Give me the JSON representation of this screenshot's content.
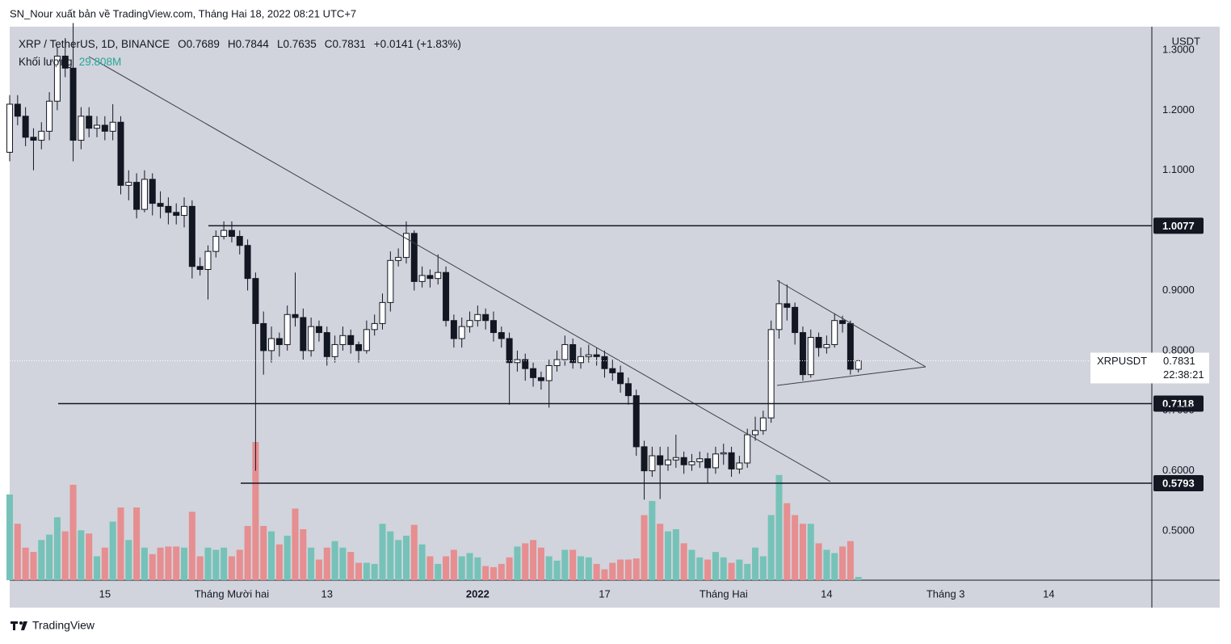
{
  "header": {
    "publisher_line": "SN_Nour xuất bản về TradingView.com, Tháng Hai 18, 2022 08:21 UTC+7",
    "brand": "TradingView"
  },
  "chart_data": {
    "type": "candlestick",
    "symbol_title": "XRP / TetherUS, 1D, BINANCE",
    "ohlc_prefixes": [
      "O",
      "H",
      "L",
      "C"
    ],
    "change_label": "+0.0141 (+1.83%)",
    "volume_name": "Khối lượng",
    "volume_value_label": "29.808M",
    "axis_unit": "USDT",
    "symbol": "XRPUSDT",
    "countdown": "22:38:21",
    "x": [
      "2021-11-03",
      "2021-11-04",
      "2021-11-05",
      "2021-11-06",
      "2021-11-07",
      "2021-11-08",
      "2021-11-09",
      "2021-11-10",
      "2021-11-11",
      "2021-11-12",
      "2021-11-13",
      "2021-11-14",
      "2021-11-15",
      "2021-11-16",
      "2021-11-17",
      "2021-11-18",
      "2021-11-19",
      "2021-11-20",
      "2021-11-21",
      "2021-11-22",
      "2021-11-23",
      "2021-11-24",
      "2021-11-25",
      "2021-11-26",
      "2021-11-27",
      "2021-11-28",
      "2021-11-29",
      "2021-11-30",
      "2021-12-01",
      "2021-12-02",
      "2021-12-03",
      "2021-12-04",
      "2021-12-05",
      "2021-12-06",
      "2021-12-07",
      "2021-12-08",
      "2021-12-09",
      "2021-12-10",
      "2021-12-11",
      "2021-12-12",
      "2021-12-13",
      "2021-12-14",
      "2021-12-15",
      "2021-12-16",
      "2021-12-17",
      "2021-12-18",
      "2021-12-19",
      "2021-12-20",
      "2021-12-21",
      "2021-12-22",
      "2021-12-23",
      "2021-12-24",
      "2021-12-25",
      "2021-12-26",
      "2021-12-27",
      "2021-12-28",
      "2021-12-29",
      "2021-12-30",
      "2021-12-31",
      "2022-01-01",
      "2022-01-02",
      "2022-01-03",
      "2022-01-04",
      "2022-01-05",
      "2022-01-06",
      "2022-01-07",
      "2022-01-08",
      "2022-01-09",
      "2022-01-10",
      "2022-01-11",
      "2022-01-12",
      "2022-01-13",
      "2022-01-14",
      "2022-01-15",
      "2022-01-16",
      "2022-01-17",
      "2022-01-18",
      "2022-01-19",
      "2022-01-20",
      "2022-01-21",
      "2022-01-22",
      "2022-01-23",
      "2022-01-24",
      "2022-01-25",
      "2022-01-26",
      "2022-01-27",
      "2022-01-28",
      "2022-01-29",
      "2022-01-30",
      "2022-01-31",
      "2022-02-01",
      "2022-02-02",
      "2022-02-03",
      "2022-02-04",
      "2022-02-05",
      "2022-02-06",
      "2022-02-07",
      "2022-02-08",
      "2022-02-09",
      "2022-02-10",
      "2022-02-11",
      "2022-02-12",
      "2022-02-13",
      "2022-02-14",
      "2022-02-15",
      "2022-02-16",
      "2022-02-17",
      "2022-02-18"
    ],
    "open": [
      1.13,
      1.21,
      1.19,
      1.155,
      1.15,
      1.165,
      1.215,
      1.29,
      1.27,
      1.15,
      1.19,
      1.17,
      1.175,
      1.165,
      1.18,
      1.075,
      1.08,
      1.035,
      1.085,
      1.045,
      1.04,
      1.03,
      1.025,
      1.04,
      0.94,
      0.935,
      0.965,
      0.99,
      1.0,
      0.99,
      0.975,
      0.92,
      0.845,
      0.8,
      0.82,
      0.81,
      0.86,
      0.855,
      0.8,
      0.84,
      0.83,
      0.79,
      0.81,
      0.825,
      0.81,
      0.8,
      0.835,
      0.845,
      0.88,
      0.95,
      0.955,
      0.995,
      0.915,
      0.925,
      0.92,
      0.93,
      0.85,
      0.82,
      0.84,
      0.85,
      0.86,
      0.85,
      0.83,
      0.82,
      0.78,
      0.785,
      0.77,
      0.755,
      0.75,
      0.775,
      0.785,
      0.81,
      0.78,
      0.79,
      0.793,
      0.79,
      0.77,
      0.763,
      0.745,
      0.725,
      0.64,
      0.6,
      0.625,
      0.61,
      0.618,
      0.622,
      0.61,
      0.615,
      0.62,
      0.605,
      0.628,
      0.63,
      0.603,
      0.613,
      0.66,
      0.667,
      0.688,
      0.835,
      0.878,
      0.872,
      0.83,
      0.76,
      0.822,
      0.805,
      0.81,
      0.85,
      0.845,
      0.7689
    ],
    "high": [
      1.225,
      1.225,
      1.205,
      1.17,
      1.18,
      1.23,
      1.305,
      1.32,
      1.345,
      1.205,
      1.205,
      1.19,
      1.19,
      1.21,
      1.19,
      1.1,
      1.095,
      1.1,
      1.095,
      1.065,
      1.055,
      1.045,
      1.055,
      1.05,
      0.955,
      0.975,
      1.0,
      1.015,
      1.015,
      1.0,
      0.985,
      0.93,
      0.865,
      0.84,
      0.83,
      0.875,
      0.93,
      0.87,
      0.855,
      0.85,
      0.84,
      0.825,
      0.84,
      0.835,
      0.815,
      0.85,
      0.86,
      0.895,
      0.965,
      0.97,
      1.015,
      1.0,
      0.94,
      0.935,
      0.96,
      0.94,
      0.86,
      0.855,
      0.865,
      0.875,
      0.87,
      0.865,
      0.84,
      0.83,
      0.8,
      0.795,
      0.78,
      0.765,
      0.785,
      0.8,
      0.825,
      0.82,
      0.805,
      0.81,
      0.805,
      0.8,
      0.785,
      0.775,
      0.755,
      0.735,
      0.65,
      0.64,
      0.64,
      0.64,
      0.66,
      0.632,
      0.628,
      0.632,
      0.63,
      0.64,
      0.645,
      0.64,
      0.625,
      0.67,
      0.69,
      0.7,
      0.85,
      0.917,
      0.91,
      0.88,
      0.84,
      0.835,
      0.83,
      0.825,
      0.862,
      0.858,
      0.85,
      0.7844
    ],
    "low": [
      1.115,
      1.175,
      1.14,
      1.1,
      1.135,
      1.15,
      1.2,
      1.255,
      1.115,
      1.135,
      1.155,
      1.155,
      1.15,
      1.15,
      1.06,
      1.05,
      1.02,
      1.03,
      1.025,
      1.02,
      1.01,
      1.01,
      1.005,
      0.92,
      0.925,
      0.885,
      0.955,
      0.985,
      0.98,
      0.96,
      0.9,
      0.6,
      0.76,
      0.78,
      0.79,
      0.8,
      0.84,
      0.785,
      0.79,
      0.815,
      0.775,
      0.78,
      0.8,
      0.795,
      0.78,
      0.795,
      0.825,
      0.835,
      0.865,
      0.94,
      0.945,
      0.9,
      0.905,
      0.905,
      0.91,
      0.84,
      0.805,
      0.805,
      0.83,
      0.84,
      0.835,
      0.815,
      0.805,
      0.71,
      0.765,
      0.75,
      0.74,
      0.735,
      0.705,
      0.765,
      0.775,
      0.77,
      0.77,
      0.78,
      0.775,
      0.755,
      0.75,
      0.73,
      0.71,
      0.625,
      0.552,
      0.59,
      0.553,
      0.6,
      0.605,
      0.595,
      0.6,
      0.605,
      0.58,
      0.595,
      0.61,
      0.59,
      0.595,
      0.605,
      0.65,
      0.66,
      0.68,
      0.82,
      0.85,
      0.81,
      0.75,
      0.755,
      0.79,
      0.795,
      0.805,
      0.83,
      0.76,
      0.7635
    ],
    "close": [
      1.21,
      1.19,
      1.155,
      1.15,
      1.165,
      1.215,
      1.29,
      1.27,
      1.15,
      1.19,
      1.17,
      1.175,
      1.165,
      1.18,
      1.075,
      1.08,
      1.035,
      1.085,
      1.045,
      1.04,
      1.03,
      1.025,
      1.04,
      0.94,
      0.935,
      0.965,
      0.99,
      1.0,
      0.99,
      0.975,
      0.92,
      0.845,
      0.8,
      0.82,
      0.81,
      0.86,
      0.855,
      0.8,
      0.84,
      0.83,
      0.79,
      0.81,
      0.825,
      0.81,
      0.8,
      0.835,
      0.845,
      0.88,
      0.95,
      0.955,
      0.995,
      0.915,
      0.925,
      0.92,
      0.93,
      0.85,
      0.82,
      0.84,
      0.85,
      0.86,
      0.85,
      0.83,
      0.82,
      0.78,
      0.785,
      0.77,
      0.755,
      0.75,
      0.775,
      0.785,
      0.81,
      0.78,
      0.79,
      0.793,
      0.79,
      0.77,
      0.763,
      0.745,
      0.725,
      0.64,
      0.6,
      0.625,
      0.61,
      0.618,
      0.622,
      0.61,
      0.615,
      0.62,
      0.605,
      0.628,
      0.63,
      0.603,
      0.613,
      0.66,
      0.667,
      0.688,
      0.835,
      0.878,
      0.872,
      0.83,
      0.76,
      0.822,
      0.805,
      0.81,
      0.85,
      0.845,
      0.769,
      0.7831
    ],
    "volume": [
      790,
      520,
      300,
      260,
      370,
      420,
      580,
      450,
      880,
      460,
      430,
      220,
      300,
      540,
      670,
      370,
      670,
      300,
      240,
      300,
      310,
      310,
      300,
      630,
      220,
      300,
      280,
      300,
      220,
      280,
      500,
      1274,
      500,
      450,
      330,
      410,
      660,
      470,
      300,
      190,
      300,
      360,
      300,
      260,
      160,
      160,
      150,
      520,
      450,
      370,
      410,
      510,
      330,
      220,
      150,
      220,
      280,
      220,
      250,
      210,
      130,
      120,
      150,
      210,
      310,
      340,
      370,
      300,
      220,
      180,
      280,
      280,
      220,
      210,
      150,
      100,
      160,
      190,
      190,
      200,
      600,
      730,
      520,
      450,
      470,
      340,
      280,
      210,
      190,
      260,
      210,
      160,
      190,
      150,
      300,
      220,
      600,
      970,
      710,
      600,
      520,
      520,
      340,
      280,
      250,
      310,
      360,
      29.808
    ],
    "up_color": "#ffffff",
    "down_color": "#131722",
    "volume_up_color": "#76c2b8",
    "volume_down_color": "#e68e90",
    "xlim": [
      "2021-11-03",
      "2022-03-27"
    ],
    "xticks": [
      {
        "value": "2021-11-15",
        "label": "15"
      },
      {
        "value": "2021-12-01",
        "label": "Tháng Mười hai"
      },
      {
        "value": "2021-12-13",
        "label": "13"
      },
      {
        "value": "2022-01-01",
        "label": "2022"
      },
      {
        "value": "2022-01-17",
        "label": "17"
      },
      {
        "value": "2022-02-01",
        "label": "Tháng Hai"
      },
      {
        "value": "2022-02-14",
        "label": "14"
      },
      {
        "value": "2022-03-01",
        "label": "Tháng 3"
      },
      {
        "value": "2022-03-14",
        "label": "14"
      }
    ],
    "ylim": [
      0.418,
      1.339
    ],
    "yticks": [
      {
        "value": 1.3,
        "label": "1.3000"
      },
      {
        "value": 1.2,
        "label": "1.2000"
      },
      {
        "value": 1.1,
        "label": "1.1000"
      },
      {
        "value": 0.9,
        "label": "0.9000"
      },
      {
        "value": 0.8,
        "label": "0.8000"
      },
      {
        "value": 0.7,
        "label": "0.7000"
      },
      {
        "value": 0.6,
        "label": "0.6000"
      },
      {
        "value": 0.5,
        "label": "0.5000"
      }
    ],
    "levels": [
      1.0077,
      0.7118,
      0.5793
    ],
    "grid": false
  }
}
